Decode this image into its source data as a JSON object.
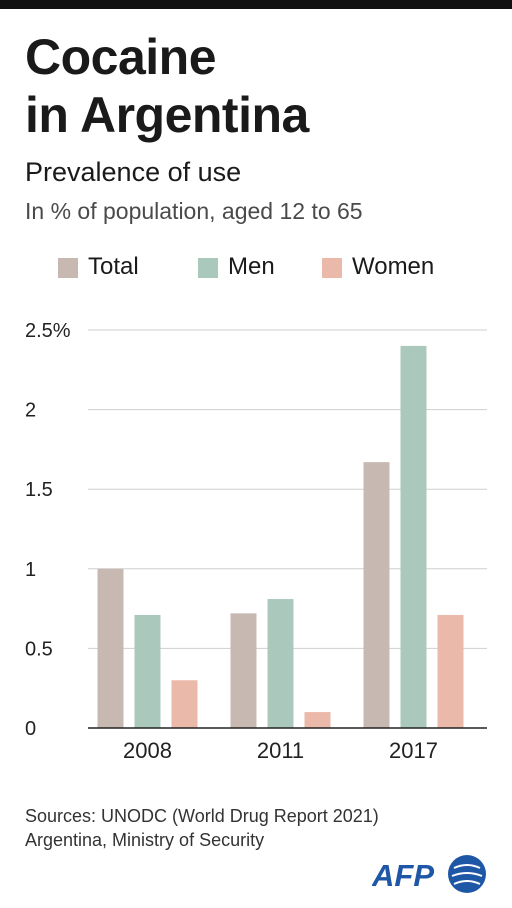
{
  "header": {
    "title_line1": "Cocaine",
    "title_line2": "in Argentina",
    "subtitle": "Prevalence of use",
    "unit_note": "In % of population, aged 12 to 65"
  },
  "colors": {
    "Total": "#c7b8b2",
    "Men": "#abc8bd",
    "Women": "#eab9aa",
    "grid": "#cfcfcf",
    "axis": "#222222",
    "logo_blue": "#1e57a6"
  },
  "chart_data": {
    "type": "bar",
    "title": "Prevalence of use",
    "subtitle": "In % of population, aged 12 to 65",
    "categories": [
      "2008",
      "2011",
      "2017"
    ],
    "series": [
      {
        "name": "Total",
        "values": [
          1.0,
          0.72,
          1.67
        ]
      },
      {
        "name": "Men",
        "values": [
          0.71,
          0.81,
          2.4
        ]
      },
      {
        "name": "Women",
        "values": [
          0.3,
          0.1,
          0.71
        ]
      }
    ],
    "ylim": [
      0,
      2.5
    ],
    "yticks": [
      0,
      0.5,
      1,
      1.5,
      2,
      2.5
    ],
    "ytick_labels": [
      "0",
      "0.5",
      "1",
      "1.5",
      "2",
      "2.5%"
    ],
    "xlabel": "",
    "ylabel": "",
    "grid": true,
    "legend_position": "top"
  },
  "footer": {
    "sources_line1": "Sources: UNODC (World Drug Report 2021)",
    "sources_line2": "Argentina, Ministry of Security",
    "logo_text": "AFP",
    "logo_icon": "afp-globe-icon"
  }
}
